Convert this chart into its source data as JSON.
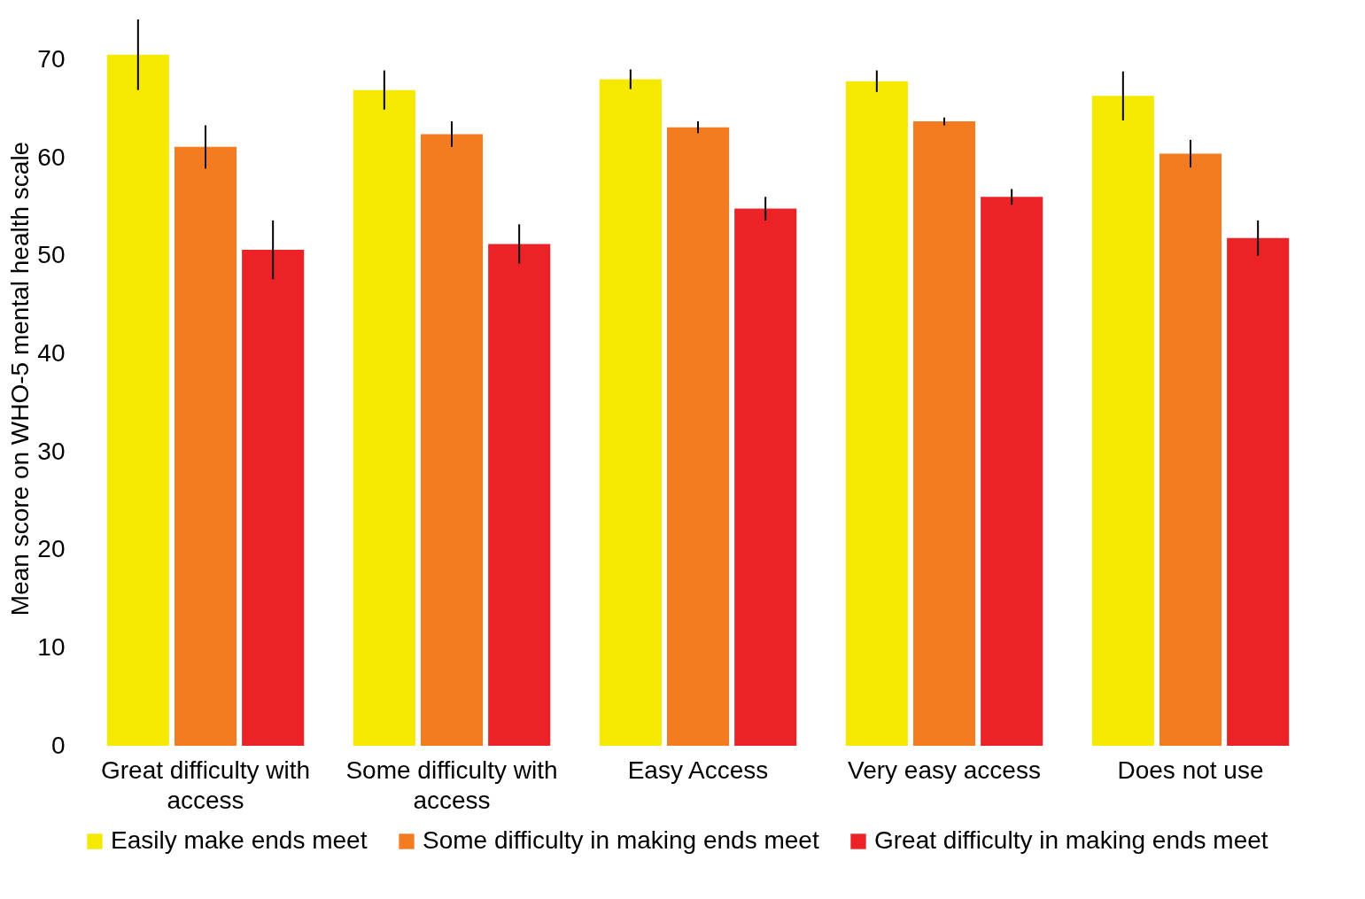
{
  "chart_data": {
    "type": "bar",
    "ylabel": "Mean score on WHO-5 mental health scale",
    "categories": [
      "Great difficulty with access",
      "Some difficulty with access",
      "Easy Access",
      "Very easy access",
      "Does not use"
    ],
    "series": [
      {
        "name": "Easily make ends meet",
        "color": "#f5e900",
        "values": [
          70.5,
          66.9,
          68.0,
          67.8,
          66.3
        ],
        "errors": [
          3.6,
          2.0,
          1.0,
          1.1,
          2.5
        ]
      },
      {
        "name": "Some difficulty in making ends meet",
        "color": "#f37b20",
        "values": [
          61.1,
          62.4,
          63.1,
          63.7,
          60.4
        ],
        "errors": [
          2.2,
          1.3,
          0.6,
          0.4,
          1.4
        ]
      },
      {
        "name": "Great difficulty in making ends meet",
        "color": "#ec2227",
        "values": [
          50.6,
          51.2,
          54.8,
          56.0,
          51.8
        ],
        "errors": [
          3.0,
          2.0,
          1.2,
          0.8,
          1.8
        ]
      }
    ],
    "ylim": [
      0,
      75
    ],
    "yticks": [
      0,
      10,
      20,
      30,
      40,
      50,
      60,
      70
    ],
    "grid": false,
    "legend": "bottom"
  }
}
